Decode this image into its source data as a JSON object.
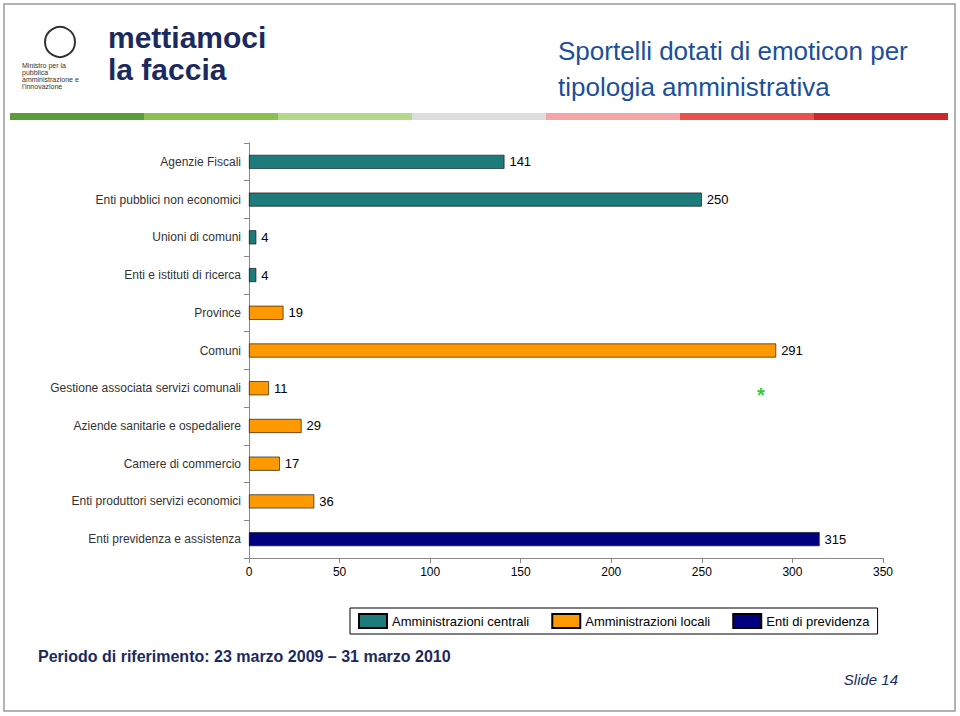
{
  "chart_data": {
    "type": "bar",
    "orientation": "horizontal",
    "title": "Sportelli dotati di emoticon per tipologia amministrativa",
    "categories": [
      "Agenzie Fiscali",
      "Enti pubblici non economici",
      "Unioni di comuni",
      "Enti e istituti di ricerca",
      "Province",
      "Comuni",
      "Gestione associata servizi comunali",
      "Aziende sanitarie e ospedaliere",
      "Camere di commercio",
      "Enti produttori servizi economici",
      "Enti previdenza e assistenza"
    ],
    "series": [
      {
        "name": "Amministrazioni centrali",
        "color": "#1E7B7B",
        "values": [
          141,
          250,
          4,
          4,
          null,
          null,
          null,
          null,
          null,
          null,
          null
        ]
      },
      {
        "name": "Amministrazioni locali",
        "color": "#FF9900",
        "values": [
          null,
          null,
          null,
          null,
          19,
          291,
          11,
          29,
          17,
          36,
          null
        ]
      },
      {
        "name": "Enti di previdenza",
        "color": "#000080",
        "values": [
          null,
          null,
          null,
          null,
          null,
          null,
          null,
          null,
          null,
          null,
          315
        ]
      }
    ],
    "xlim": [
      0,
      350
    ],
    "xticks": [
      0,
      50,
      100,
      150,
      200,
      250,
      300,
      350
    ],
    "grid": false,
    "legend": "bottom",
    "data_labels": true,
    "annotations": [
      "mettiamoci",
      "la faccia",
      "Ministro per la pubblica amministrazione e l'innovazione",
      "*",
      "Periodo di riferimento: 23 marzo 2009 – 31 marzo 2010",
      "Slide 14"
    ]
  }
}
